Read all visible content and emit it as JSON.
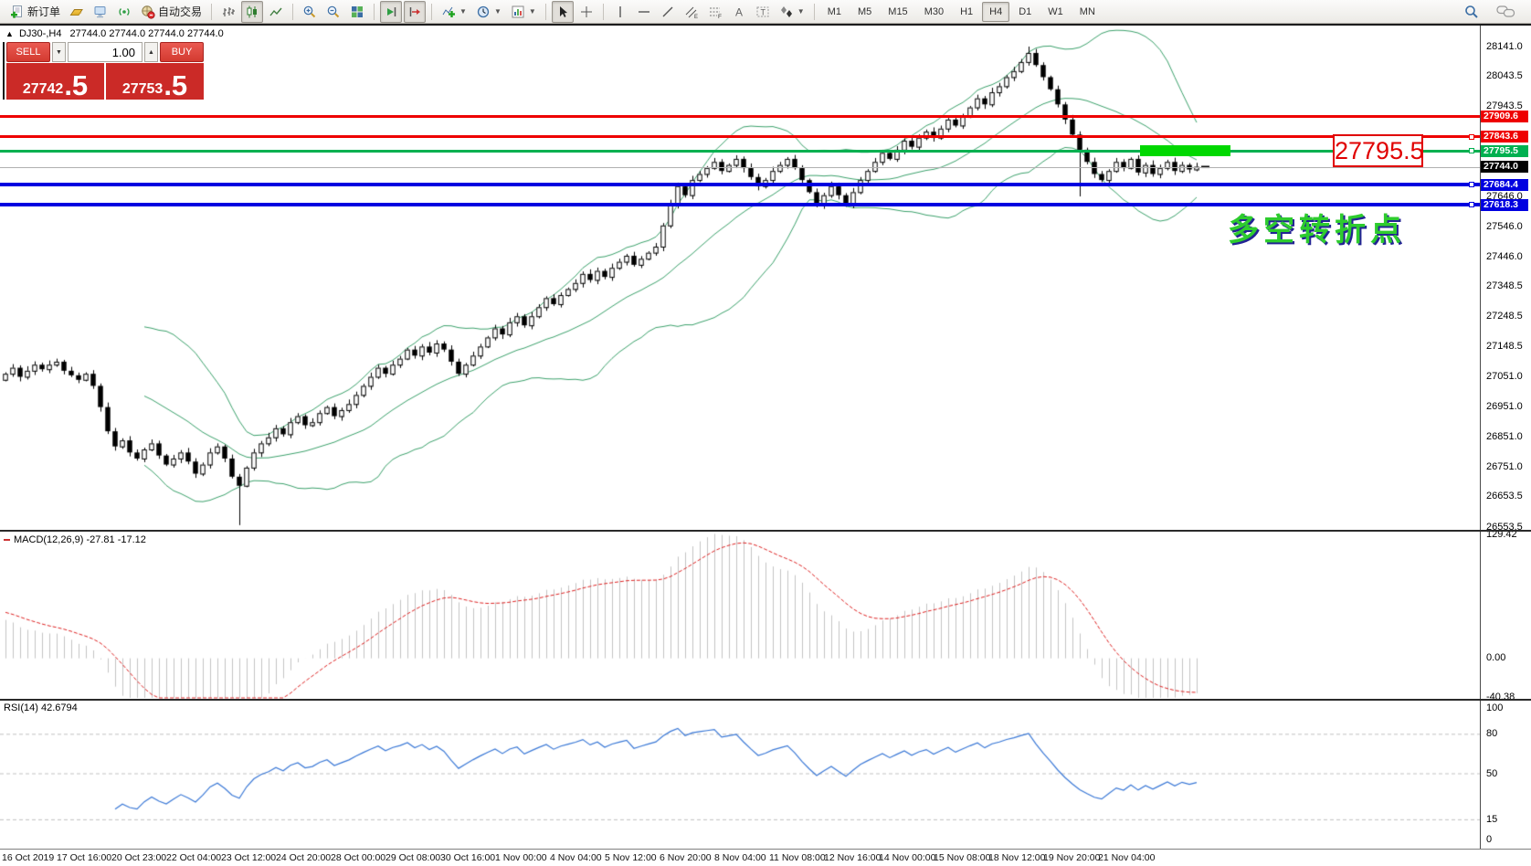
{
  "toolbar": {
    "buttons": [
      {
        "name": "new-order",
        "icon": "new-order-icon",
        "label": "新订单"
      },
      {
        "name": "market-watch",
        "icon": "gold-bar-icon"
      },
      {
        "name": "data-window",
        "icon": "monitor-icon"
      },
      {
        "name": "signal",
        "icon": "broadcast-icon"
      },
      {
        "name": "autotrading",
        "icon": "globe-stop-icon",
        "label": "自动交易"
      },
      {
        "sep": true
      },
      {
        "name": "bar-chart",
        "icon": "bar-chart-icon"
      },
      {
        "name": "candlestick-chart",
        "icon": "candlestick-icon",
        "pressed": true
      },
      {
        "name": "line-chart",
        "icon": "line-chart-icon"
      },
      {
        "sep": true
      },
      {
        "name": "zoom-in",
        "icon": "zoom-in-icon"
      },
      {
        "name": "zoom-out",
        "icon": "zoom-out-icon"
      },
      {
        "name": "tile-windows",
        "icon": "tile-windows-icon"
      },
      {
        "sep": true
      },
      {
        "name": "auto-scroll",
        "icon": "auto-scroll-icon",
        "pressed": true
      },
      {
        "name": "chart-shift",
        "icon": "chart-shift-icon",
        "pressed": true
      },
      {
        "sep": true
      },
      {
        "name": "new-chart",
        "icon": "indicators-icon",
        "dropdown": true
      },
      {
        "name": "periods",
        "icon": "clock-icon",
        "dropdown": true
      },
      {
        "name": "templates",
        "icon": "template-icon",
        "dropdown": true
      },
      {
        "sep": true
      },
      {
        "name": "cursor",
        "icon": "cursor-icon",
        "pressed": true
      },
      {
        "name": "crosshair",
        "icon": "crosshair-icon"
      },
      {
        "sep": true
      },
      {
        "name": "vertical-line",
        "icon": "vertical-line-icon"
      },
      {
        "name": "horizontal-line",
        "icon": "horizontal-line-icon"
      },
      {
        "name": "trendline",
        "icon": "trendline-icon"
      },
      {
        "name": "equidistant-channel",
        "icon": "channel-icon"
      },
      {
        "name": "fibonacci",
        "icon": "fibonacci-icon"
      },
      {
        "name": "text",
        "icon": "text-a-icon"
      },
      {
        "name": "text-label",
        "icon": "text-label-icon"
      },
      {
        "name": "arrows",
        "icon": "arrows-icon",
        "dropdown": true
      },
      {
        "sep": true
      }
    ],
    "timeframes": [
      "M1",
      "M5",
      "M15",
      "M30",
      "H1",
      "H4",
      "D1",
      "W1",
      "MN"
    ],
    "active_timeframe": "H4",
    "right_icons": [
      {
        "name": "search",
        "icon": "search-icon"
      },
      {
        "name": "chat",
        "icon": "chat-icon"
      }
    ]
  },
  "chart": {
    "collapse_glyph": "▲",
    "title_symbol": "DJ30-,H4",
    "title_ohlc": "27744.0 27744.0 27744.0 27744.0"
  },
  "one_click": {
    "sell_label": "SELL",
    "buy_label": "BUY",
    "volume": "1.00",
    "spin_down": "▼",
    "spin_up": "▲",
    "sell_price_main": "27742",
    "sell_price_frac": ".5",
    "buy_price_main": "27753",
    "buy_price_frac": ".5",
    "panel_color": "#cb2a27",
    "button_color": "#d33a30"
  },
  "price_axis": {
    "ticks": [
      28141.0,
      28043.5,
      27943.5,
      27646.0,
      27546.0,
      27446.0,
      27348.5,
      27248.5,
      27148.5,
      27051.0,
      26951.0,
      26851.0,
      26751.0,
      26653.5,
      26553.5
    ]
  },
  "hlines": [
    {
      "price": 27909.6,
      "tag": "27909.6",
      "color": "#ee0000",
      "thickness": 3,
      "handle": false
    },
    {
      "price": 27843.6,
      "tag": "27843.6",
      "color": "#ee0000",
      "thickness": 3,
      "handle": true
    },
    {
      "price": 27795.5,
      "tag": "27795.5",
      "color": "#00b050",
      "thickness": 3,
      "handle": true
    },
    {
      "price": 27684.4,
      "tag": "27684.4",
      "color": "#0000e0",
      "thickness": 4,
      "handle": true
    },
    {
      "price": 27618.3,
      "tag": "27618.3",
      "color": "#0000e0",
      "thickness": 4,
      "handle": true
    }
  ],
  "current_price": {
    "price": 27744.0,
    "tag": "27744.0",
    "line_color": "#b0b0b0",
    "tag_bg": "#000000"
  },
  "annotations": {
    "big_price_label": "27795.5",
    "turning_point": "多空转折点",
    "highlight_color": "#00d800",
    "label_color": "#e00000",
    "turning_color": "#2ecc2e"
  },
  "macd_pane": {
    "label": "MACD(12,26,9) -27.81 -17.12",
    "axis_labels": [
      "129.42",
      "0.00",
      "-40.38"
    ],
    "axis_max": 129.42,
    "axis_min": -40.38
  },
  "rsi_pane": {
    "label": "RSI(14) 42.6794",
    "value": 42.6794,
    "axis_labels": [
      "100",
      "80",
      "50",
      "15",
      "0"
    ],
    "levels": [
      80,
      50,
      15
    ]
  },
  "time_axis": {
    "labels": [
      "16 Oct 2019",
      "17 Oct 16:00",
      "20 Oct 23:00",
      "22 Oct 04:00",
      "23 Oct 12:00",
      "24 Oct 20:00",
      "28 Oct 00:00",
      "29 Oct 08:00",
      "30 Oct 16:00",
      "1 Nov 00:00",
      "4 Nov 04:00",
      "5 Nov 12:00",
      "6 Nov 20:00",
      "8 Nov 04:00",
      "11 Nov 08:00",
      "12 Nov 16:00",
      "14 Nov 00:00",
      "15 Nov 08:00",
      "18 Nov 12:00",
      "19 Nov 20:00",
      "21 Nov 04:00"
    ]
  },
  "chart_data": {
    "type": "candlestick",
    "symbol": "DJ30-",
    "timeframe": "H4",
    "price_axis_range": [
      26553.5,
      28141.0
    ],
    "first_open": 27040,
    "closes": [
      27060,
      27080,
      27050,
      27070,
      27090,
      27075,
      27090,
      27100,
      27070,
      27055,
      27040,
      27060,
      27020,
      26950,
      26870,
      26820,
      26840,
      26800,
      26780,
      26810,
      26830,
      26790,
      26760,
      26780,
      26800,
      26770,
      26730,
      26760,
      26800,
      26820,
      26780,
      26720,
      26690,
      26750,
      26800,
      26830,
      26850,
      26880,
      26860,
      26900,
      26920,
      26890,
      26900,
      26930,
      26950,
      26920,
      26940,
      26960,
      26990,
      27020,
      27050,
      27080,
      27060,
      27090,
      27110,
      27140,
      27120,
      27150,
      27130,
      27160,
      27140,
      27100,
      27060,
      27090,
      27120,
      27150,
      27180,
      27210,
      27190,
      27230,
      27250,
      27220,
      27250,
      27280,
      27310,
      27290,
      27320,
      27340,
      27360,
      27390,
      27370,
      27400,
      27380,
      27410,
      27430,
      27450,
      27420,
      27440,
      27460,
      27480,
      27550,
      27620,
      27680,
      27650,
      27700,
      27720,
      27740,
      27760,
      27730,
      27750,
      27770,
      27740,
      27710,
      27680,
      27700,
      27730,
      27750,
      27770,
      27740,
      27700,
      27660,
      27620,
      27650,
      27680,
      27650,
      27620,
      27660,
      27700,
      27730,
      27760,
      27790,
      27770,
      27800,
      27830,
      27810,
      27840,
      27860,
      27840,
      27870,
      27900,
      27880,
      27910,
      27940,
      27970,
      27950,
      27990,
      28010,
      28040,
      28060,
      28090,
      28120,
      28080,
      28040,
      28000,
      27950,
      27900,
      27850,
      27800,
      27760,
      27720,
      27700,
      27730,
      27760,
      27740,
      27770,
      27725,
      27750,
      27720,
      27740,
      27760,
      27730,
      27750,
      27735,
      27744
    ],
    "special_wicks": {
      "32": {
        "low": 26560
      },
      "140": {
        "high": 28141
      },
      "147": {
        "low": 27646
      }
    },
    "indicators": {
      "bollinger": {
        "period": 20,
        "deviation": 2,
        "color": "#3aa06a"
      },
      "macd": {
        "fast": 12,
        "slow": 26,
        "signal": 9,
        "hist_color": "#c3c3c3",
        "signal_color": "#dd2222"
      },
      "rsi": {
        "period": 14,
        "color": "#3a78d6"
      }
    }
  }
}
